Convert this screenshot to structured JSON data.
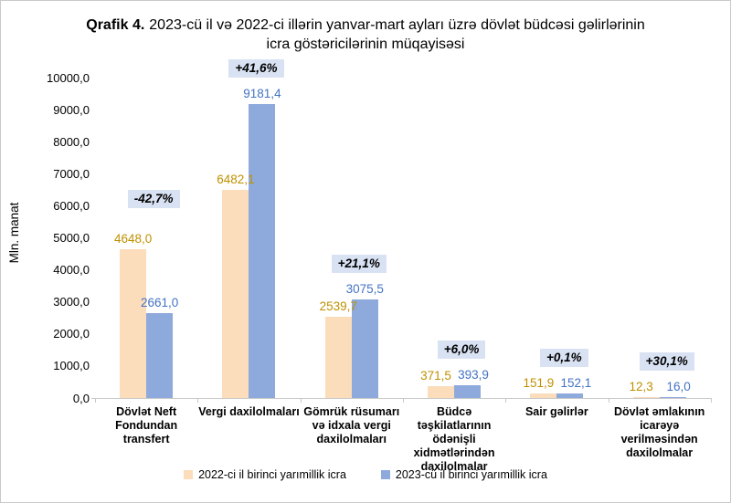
{
  "title": {
    "prefix": "Qrafik 4.",
    "rest": "2023-cü il və 2022-ci illərin yanvar-mart ayları üzrə dövlət büdcəsi gəlirlərinin icra göstəricilərinin müqayisəsi"
  },
  "chart_data": {
    "type": "bar",
    "title": "Qrafik 4. 2023-cü il və 2022-ci illərin yanvar-mart ayları üzrə dövlət büdcəsi gəlirlərinin icra göstəricilərinin müqayisəsi",
    "ylabel": "Mln. manat",
    "ylim": [
      0,
      10000
    ],
    "ytick_step": 1000,
    "grid": false,
    "legend_position": "bottom",
    "decimal_separator": ",",
    "categories": [
      "Dövlət Neft Fondundan transfert",
      "Vergi daxilolmaları",
      "Gömrük rüsumarı və idxala vergi daxilolmaları",
      "Büdcə təşkilatlarının ödənişli xidmətlərindən daxilolmalar",
      "Sair gəlirlər",
      "Dövlət əmlakının icarəyə verilməsindən daxilolmalar"
    ],
    "series": [
      {
        "name": "2022-ci il birinci yarımillik icra",
        "color": "#FBDCBB",
        "label_color": "#BF9000",
        "values": [
          4648.0,
          6482.1,
          2539.7,
          371.5,
          151.9,
          12.3
        ]
      },
      {
        "name": "2023-cü il birinci yarımillik icra",
        "color": "#8EA9DB",
        "label_color": "#4472C4",
        "values": [
          2661.0,
          9181.4,
          3075.5,
          393.9,
          152.1,
          16.0
        ]
      }
    ],
    "change_badges": [
      "-42,7%",
      "+41,6%",
      "+21,1%",
      "+6,0%",
      "+0,1%",
      "+30,1%"
    ],
    "badge_style": {
      "background": "#D9E2F3",
      "color": "#000000"
    },
    "badge_offsets_y": [
      -16,
      0,
      0,
      0,
      0,
      0
    ]
  },
  "colors": {
    "axis": "#c9c9c9",
    "frame_border": "#c9c9c9",
    "background": "#ffffff"
  }
}
